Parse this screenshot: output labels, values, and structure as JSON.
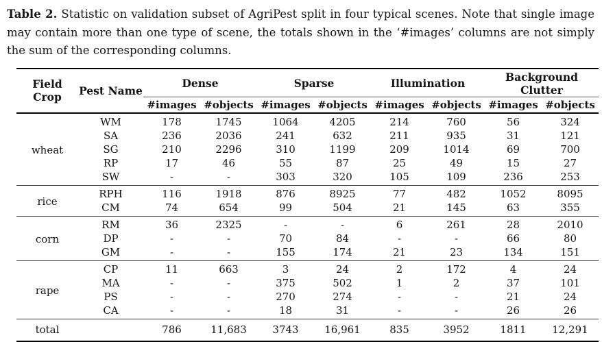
{
  "caption": {
    "label": "Table 2.",
    "text": "Statistic on validation subset of AgriPest split in four typical scenes. Note that single image may contain more than one type of scene, the totals shown in the ‘#images’ columns are not simply the sum of the corresponding columns."
  },
  "table": {
    "col_headers": {
      "field_crop": "Field Crop",
      "pest_name": "Pest Name"
    },
    "groups": [
      {
        "label": "Dense"
      },
      {
        "label": "Sparse"
      },
      {
        "label": "Illumination"
      },
      {
        "label": "Background Clutter"
      }
    ],
    "subheaders": [
      "#images",
      "#objects"
    ],
    "sections": [
      {
        "crop": "wheat",
        "rows": [
          {
            "pest": "WM",
            "values": [
              "178",
              "1745",
              "1064",
              "4205",
              "214",
              "760",
              "56",
              "324"
            ]
          },
          {
            "pest": "SA",
            "values": [
              "236",
              "2036",
              "241",
              "632",
              "211",
              "935",
              "31",
              "121"
            ]
          },
          {
            "pest": "SG",
            "values": [
              "210",
              "2296",
              "310",
              "1199",
              "209",
              "1014",
              "69",
              "700"
            ]
          },
          {
            "pest": "RP",
            "values": [
              "17",
              "46",
              "55",
              "87",
              "25",
              "49",
              "15",
              "27"
            ]
          },
          {
            "pest": "SW",
            "values": [
              "-",
              "-",
              "303",
              "320",
              "105",
              "109",
              "236",
              "253"
            ]
          }
        ]
      },
      {
        "crop": "rice",
        "rows": [
          {
            "pest": "RPH",
            "values": [
              "116",
              "1918",
              "876",
              "8925",
              "77",
              "482",
              "1052",
              "8095"
            ]
          },
          {
            "pest": "CM",
            "values": [
              "74",
              "654",
              "99",
              "504",
              "21",
              "145",
              "63",
              "355"
            ]
          }
        ]
      },
      {
        "crop": "corn",
        "rows": [
          {
            "pest": "RM",
            "values": [
              "36",
              "2325",
              "-",
              "-",
              "6",
              "261",
              "28",
              "2010"
            ]
          },
          {
            "pest": "DP",
            "values": [
              "-",
              "-",
              "70",
              "84",
              "-",
              "-",
              "66",
              "80"
            ]
          },
          {
            "pest": "GM",
            "values": [
              "-",
              "-",
              "155",
              "174",
              "21",
              "23",
              "134",
              "151"
            ]
          }
        ]
      },
      {
        "crop": "rape",
        "rows": [
          {
            "pest": "CP",
            "values": [
              "11",
              "663",
              "3",
              "24",
              "2",
              "172",
              "4",
              "24"
            ]
          },
          {
            "pest": "MA",
            "values": [
              "-",
              "-",
              "375",
              "502",
              "1",
              "2",
              "37",
              "101"
            ]
          },
          {
            "pest": "PS",
            "values": [
              "-",
              "-",
              "270",
              "274",
              "-",
              "-",
              "21",
              "24"
            ]
          },
          {
            "pest": "CA",
            "values": [
              "-",
              "-",
              "18",
              "31",
              "-",
              "-",
              "26",
              "26"
            ]
          }
        ]
      }
    ],
    "total": {
      "label": "total",
      "values": [
        "786",
        "11,683",
        "3743",
        "16,961",
        "835",
        "3952",
        "1811",
        "12,291"
      ]
    }
  }
}
